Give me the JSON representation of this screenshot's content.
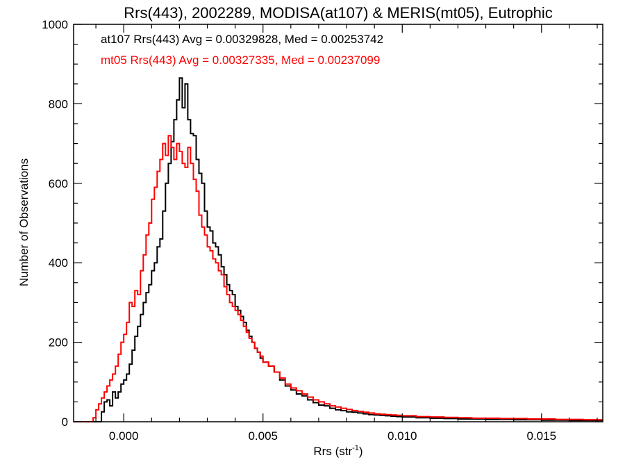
{
  "chart_data": {
    "type": "histogram-step",
    "title": "Rrs(443), 2002289, MODISA(at107) & MERIS(mt05), Eutrophic",
    "xlabel": "Rrs (str",
    "xlabel_sup": "-1",
    "xlabel_close": ")",
    "ylabel": "Number of Observations",
    "xlim": [
      -0.0018,
      0.0172
    ],
    "ylim": [
      0,
      1000
    ],
    "x_ticks": [
      0.0,
      0.005,
      0.01,
      0.015
    ],
    "x_tick_labels": [
      "0.000",
      "0.005",
      "0.010",
      "0.015"
    ],
    "y_ticks": [
      0,
      200,
      400,
      600,
      800,
      1000
    ],
    "y_tick_labels": [
      "0",
      "200",
      "400",
      "600",
      "800",
      "1000"
    ],
    "grid": false,
    "annotations": [
      {
        "text": "at107 Rrs(443) Avg = 0.00329828, Med = 0.00253742",
        "color": "#000000"
      },
      {
        "text": "mt05 Rrs(443) Avg = 0.00327335, Med = 0.00237099",
        "color": "#ff0000"
      }
    ],
    "series": [
      {
        "color": "#000000",
        "points": [
          [
            -0.0018,
            0
          ],
          [
            -0.0009,
            0
          ],
          [
            -0.0008,
            25
          ],
          [
            -0.0007,
            50
          ],
          [
            -0.0006,
            55
          ],
          [
            -0.0005,
            40
          ],
          [
            -0.0004,
            75
          ],
          [
            -0.0003,
            60
          ],
          [
            -0.0002,
            75
          ],
          [
            -0.0001,
            95
          ],
          [
            0.0,
            105
          ],
          [
            0.0001,
            120
          ],
          [
            0.0002,
            145
          ],
          [
            0.0003,
            180
          ],
          [
            0.0004,
            215
          ],
          [
            0.0005,
            240
          ],
          [
            0.0006,
            270
          ],
          [
            0.0007,
            300
          ],
          [
            0.0008,
            325
          ],
          [
            0.0009,
            345
          ],
          [
            0.001,
            380
          ],
          [
            0.0011,
            400
          ],
          [
            0.0012,
            440
          ],
          [
            0.0013,
            460
          ],
          [
            0.0014,
            530
          ],
          [
            0.0015,
            600
          ],
          [
            0.0016,
            650
          ],
          [
            0.0017,
            705
          ],
          [
            0.0018,
            760
          ],
          [
            0.0019,
            810
          ],
          [
            0.002,
            865
          ],
          [
            0.0021,
            790
          ],
          [
            0.0022,
            850
          ],
          [
            0.0023,
            760
          ],
          [
            0.0024,
            725
          ],
          [
            0.0025,
            720
          ],
          [
            0.0026,
            660
          ],
          [
            0.0027,
            625
          ],
          [
            0.0028,
            600
          ],
          [
            0.0029,
            530
          ],
          [
            0.003,
            490
          ],
          [
            0.0031,
            480
          ],
          [
            0.0032,
            450
          ],
          [
            0.0033,
            440
          ],
          [
            0.0034,
            420
          ],
          [
            0.0035,
            390
          ],
          [
            0.0036,
            370
          ],
          [
            0.0037,
            345
          ],
          [
            0.0038,
            330
          ],
          [
            0.0039,
            320
          ],
          [
            0.004,
            290
          ],
          [
            0.0041,
            280
          ],
          [
            0.0042,
            265
          ],
          [
            0.0043,
            250
          ],
          [
            0.0044,
            230
          ],
          [
            0.0045,
            215
          ],
          [
            0.0046,
            200
          ],
          [
            0.0047,
            185
          ],
          [
            0.0048,
            175
          ],
          [
            0.0049,
            160
          ],
          [
            0.005,
            150
          ],
          [
            0.0052,
            140
          ],
          [
            0.0054,
            125
          ],
          [
            0.0056,
            105
          ],
          [
            0.0058,
            90
          ],
          [
            0.006,
            80
          ],
          [
            0.0062,
            70
          ],
          [
            0.0064,
            65
          ],
          [
            0.0066,
            55
          ],
          [
            0.0068,
            48
          ],
          [
            0.007,
            42
          ],
          [
            0.0072,
            40
          ],
          [
            0.0074,
            34
          ],
          [
            0.0076,
            30
          ],
          [
            0.0078,
            28
          ],
          [
            0.008,
            25
          ],
          [
            0.0082,
            24
          ],
          [
            0.0084,
            22
          ],
          [
            0.0086,
            20
          ],
          [
            0.0088,
            18
          ],
          [
            0.009,
            17
          ],
          [
            0.0092,
            16
          ],
          [
            0.0094,
            15
          ],
          [
            0.0096,
            14
          ],
          [
            0.0098,
            13
          ],
          [
            0.01,
            12
          ],
          [
            0.0105,
            10
          ],
          [
            0.011,
            9
          ],
          [
            0.0115,
            8
          ],
          [
            0.012,
            7
          ],
          [
            0.0125,
            7
          ],
          [
            0.013,
            6
          ],
          [
            0.0135,
            6
          ],
          [
            0.014,
            5
          ],
          [
            0.0145,
            5
          ],
          [
            0.015,
            4
          ],
          [
            0.0155,
            4
          ],
          [
            0.016,
            3
          ],
          [
            0.0165,
            3
          ],
          [
            0.017,
            3
          ],
          [
            0.0172,
            3
          ]
        ]
      },
      {
        "color": "#ff0000",
        "points": [
          [
            -0.0018,
            0
          ],
          [
            -0.0012,
            0
          ],
          [
            -0.0011,
            10
          ],
          [
            -0.001,
            30
          ],
          [
            -0.0009,
            45
          ],
          [
            -0.0008,
            60
          ],
          [
            -0.0007,
            75
          ],
          [
            -0.0006,
            90
          ],
          [
            -0.0005,
            105
          ],
          [
            -0.0004,
            120
          ],
          [
            -0.0003,
            140
          ],
          [
            -0.0002,
            170
          ],
          [
            -0.0001,
            200
          ],
          [
            0.0,
            220
          ],
          [
            0.0001,
            250
          ],
          [
            0.0002,
            300
          ],
          [
            0.0003,
            290
          ],
          [
            0.0004,
            330
          ],
          [
            0.0005,
            320
          ],
          [
            0.0006,
            380
          ],
          [
            0.0007,
            420
          ],
          [
            0.0008,
            470
          ],
          [
            0.0009,
            500
          ],
          [
            0.001,
            560
          ],
          [
            0.0011,
            590
          ],
          [
            0.0012,
            630
          ],
          [
            0.0013,
            660
          ],
          [
            0.0014,
            700
          ],
          [
            0.0015,
            670
          ],
          [
            0.0016,
            720
          ],
          [
            0.0017,
            690
          ],
          [
            0.0018,
            660
          ],
          [
            0.0019,
            700
          ],
          [
            0.002,
            680
          ],
          [
            0.0021,
            650
          ],
          [
            0.0022,
            640
          ],
          [
            0.0023,
            690
          ],
          [
            0.0024,
            650
          ],
          [
            0.0025,
            610
          ],
          [
            0.0026,
            580
          ],
          [
            0.0027,
            520
          ],
          [
            0.0028,
            490
          ],
          [
            0.0029,
            470
          ],
          [
            0.003,
            440
          ],
          [
            0.0031,
            430
          ],
          [
            0.0032,
            410
          ],
          [
            0.0033,
            400
          ],
          [
            0.0034,
            380
          ],
          [
            0.0035,
            370
          ],
          [
            0.0036,
            340
          ],
          [
            0.0037,
            320
          ],
          [
            0.0038,
            300
          ],
          [
            0.0039,
            290
          ],
          [
            0.004,
            280
          ],
          [
            0.0041,
            270
          ],
          [
            0.0042,
            255
          ],
          [
            0.0043,
            240
          ],
          [
            0.0044,
            225
          ],
          [
            0.0045,
            210
          ],
          [
            0.0046,
            200
          ],
          [
            0.0047,
            185
          ],
          [
            0.0048,
            175
          ],
          [
            0.0049,
            165
          ],
          [
            0.005,
            150
          ],
          [
            0.0052,
            140
          ],
          [
            0.0054,
            125
          ],
          [
            0.0056,
            110
          ],
          [
            0.0058,
            95
          ],
          [
            0.006,
            85
          ],
          [
            0.0062,
            78
          ],
          [
            0.0064,
            70
          ],
          [
            0.0066,
            62
          ],
          [
            0.0068,
            55
          ],
          [
            0.007,
            50
          ],
          [
            0.0072,
            45
          ],
          [
            0.0074,
            40
          ],
          [
            0.0076,
            37
          ],
          [
            0.0078,
            34
          ],
          [
            0.008,
            31
          ],
          [
            0.0082,
            28
          ],
          [
            0.0084,
            26
          ],
          [
            0.0086,
            24
          ],
          [
            0.0088,
            22
          ],
          [
            0.009,
            20
          ],
          [
            0.0092,
            19
          ],
          [
            0.0094,
            18
          ],
          [
            0.0096,
            17
          ],
          [
            0.0098,
            16
          ],
          [
            0.01,
            15
          ],
          [
            0.0105,
            13
          ],
          [
            0.011,
            12
          ],
          [
            0.0115,
            11
          ],
          [
            0.012,
            10
          ],
          [
            0.0125,
            9
          ],
          [
            0.013,
            9
          ],
          [
            0.0135,
            8
          ],
          [
            0.014,
            8
          ],
          [
            0.0145,
            7
          ],
          [
            0.015,
            7
          ],
          [
            0.0155,
            6
          ],
          [
            0.016,
            6
          ],
          [
            0.0165,
            5
          ],
          [
            0.017,
            5
          ],
          [
            0.0172,
            5
          ]
        ]
      }
    ]
  }
}
